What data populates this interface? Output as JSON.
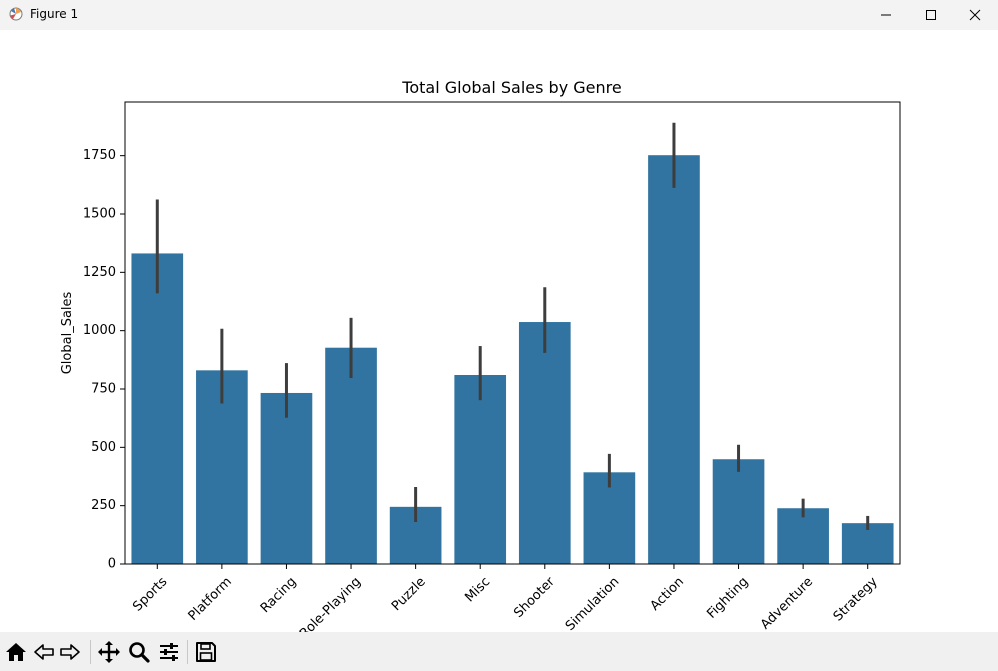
{
  "window": {
    "title": "Figure 1"
  },
  "toolbar": {
    "buttons": [
      "home-icon",
      "back-icon",
      "forward-icon",
      "pan-icon",
      "zoom-icon",
      "configure-icon",
      "save-icon"
    ]
  },
  "chart_data": {
    "type": "bar",
    "title": "Total Global Sales by Genre",
    "xlabel": "",
    "ylabel": "Global_Sales",
    "categories": [
      "Sports",
      "Platform",
      "Racing",
      "Role-Playing",
      "Puzzle",
      "Misc",
      "Shooter",
      "Simulation",
      "Action",
      "Fighting",
      "Adventure",
      "Strategy"
    ],
    "values": [
      1331,
      830,
      733,
      927,
      245,
      810,
      1037,
      393,
      1752,
      449,
      239,
      175
    ],
    "error_bars": [
      [
        1160,
        1562
      ],
      [
        688,
        1008
      ],
      [
        627,
        861
      ],
      [
        797,
        1055
      ],
      [
        180,
        330
      ],
      [
        702,
        934
      ],
      [
        905,
        1186
      ],
      [
        328,
        472
      ],
      [
        1612,
        1891
      ],
      [
        395,
        511
      ],
      [
        200,
        280
      ],
      [
        146,
        206
      ]
    ],
    "ylim": [
      0,
      1980
    ],
    "yticks": [
      0,
      250,
      500,
      750,
      1000,
      1250,
      1500,
      1750
    ],
    "bar_color": "#3274a1",
    "error_color": "#3d3d3d",
    "grid": false
  }
}
